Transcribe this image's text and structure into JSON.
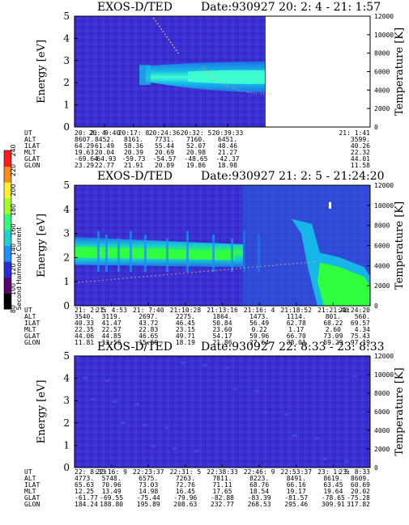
{
  "colors": {
    "background_base": "#3a2fd0",
    "band_outer": "#1f6fe6",
    "band_mid": "#16b6e8",
    "band_core": "#3fffcf",
    "band_hot": "#30ff40",
    "temp_trace": "#ffb070"
  },
  "left_colorbar": {
    "label": "Second Harmonic Current",
    "ticks": [
      "80",
      "100",
      "120",
      "140",
      "160",
      "180",
      "200",
      "220",
      "240"
    ],
    "colors": [
      "#000000",
      "#5a0070",
      "#2b2bd8",
      "#1e90ff",
      "#1fd0d0",
      "#2dff7a",
      "#a0ff2a",
      "#fff22a",
      "#ff8c1a",
      "#ff1a1a"
    ]
  },
  "panels": [
    {
      "title": "EXOS-D/TED",
      "date": "Date:930927  20: 2: 4 - 21: 1:57",
      "ylabel": "Energy [eV]",
      "y2label": "Temperature [K]",
      "yticks": [
        "0",
        "1",
        "2",
        "3",
        "4",
        "5"
      ],
      "y2ticks": [
        "0",
        "2000",
        "4000",
        "6000",
        "8000",
        "10000",
        "12000"
      ],
      "ephem": {
        "labels": [
          "UT",
          "ALT",
          "ILAT",
          "MLT",
          "GLAT",
          "GLON"
        ],
        "cols": [
          [
            "20: 2: 4",
            "8607.",
            "64.29",
            "19.63",
            "-69.64",
            "23.29"
          ],
          [
            "20: 9:40",
            "8452.",
            "61.49",
            "20.04",
            "-64.93",
            "22.77"
          ],
          [
            "20:17: 8",
            "8161.",
            "58.36",
            "20.39",
            "-59.73",
            "21.91"
          ],
          [
            "20:24:36",
            "7731.",
            "55.44",
            "20.69",
            "-54.57",
            "20.89"
          ],
          [
            "20:32: 5",
            "7160.",
            "52.07",
            "20.98",
            "-48.65",
            "19.86"
          ],
          [
            "20:39:33",
            "6451.",
            "48.46",
            "21.27",
            "-42.37",
            "18.98"
          ],
          [
            "21: 1:41",
            "3599.",
            "40.26",
            "22.32",
            "44.01",
            "11.58"
          ]
        ]
      }
    },
    {
      "title": "EXOS-D/TED",
      "date": "Date:930927  21: 2: 5 - 21:24:20",
      "ylabel": "Energy [eV]",
      "y2label": "Temperature [K]",
      "yticks": [
        "0",
        "1",
        "2",
        "3",
        "4",
        "5"
      ],
      "y2ticks": [
        "0",
        "2000",
        "4000",
        "6000",
        "8000",
        "10000",
        "12000"
      ],
      "ephem": {
        "labels": [
          "UT",
          "ALT",
          "ILAT",
          "MLT",
          "GLAT",
          "GLON"
        ],
        "cols": [
          [
            "21: 2: 5",
            "3540.",
            "40.33",
            "22.35",
            "44.06",
            "11.81"
          ],
          [
            "21: 4:53",
            "3119.",
            "41.47",
            "22.57",
            "44.85",
            "13.56"
          ],
          [
            "21: 7:40",
            "2697.",
            "43.72",
            "22.83",
            "46.65",
            "15.59"
          ],
          [
            "21:10:28",
            "2275.",
            "46.45",
            "23.15",
            "49.71",
            "18.19"
          ],
          [
            "21:13:16",
            "1864.",
            "50.84",
            "23.60",
            "54.17",
            "21.86"
          ],
          [
            "21:16: 4",
            "1473.",
            "56.49",
            "0.22",
            "59.96",
            "27.64"
          ],
          [
            "21:18:52",
            "1114.",
            "62.78",
            "1.17",
            "66.70",
            "38.01"
          ],
          [
            "21:21:40",
            "801.",
            "68.22",
            "2.60",
            "73.09",
            "59.29"
          ],
          [
            "21:24:20",
            "560.",
            "69.57",
            "4.34",
            "75.43",
            "97.19"
          ]
        ]
      }
    },
    {
      "title": "EXOS-D/TED",
      "date": "Date:930927  22: 8:33 - 23: 8:33",
      "ylabel": "Energy [eV]",
      "y2label": "Temperature [K]",
      "yticks": [
        "0",
        "1",
        "2",
        "3",
        "4",
        "5"
      ],
      "y2ticks": [
        "0",
        "2000",
        "4000",
        "6000",
        "8000",
        "10000",
        "12000"
      ],
      "ephem": {
        "labels": [
          "UT",
          "ALT",
          "ILAT",
          "MLT",
          "GLAT",
          "GLON"
        ],
        "cols": [
          [
            "22: 8:33",
            "4773.",
            "65.63",
            "12.25",
            "-61.77",
            "184.24"
          ],
          [
            "22:16: 9",
            "5748.",
            "70.96",
            "13.49",
            "-69.55",
            "188.80"
          ],
          [
            "22:23:37",
            "6575.",
            "73.03",
            "14.98",
            "-75.44",
            "195.89"
          ],
          [
            "22:31: 5",
            "7263.",
            "72.76",
            "16.45",
            "-79.96",
            "208.63"
          ],
          [
            "22:38:33",
            "7811.",
            "71.11",
            "17.65",
            "-82.88",
            "232.77"
          ],
          [
            "22:46: 9",
            "8223.",
            "68.76",
            "18.54",
            "-83.39",
            "268.53"
          ],
          [
            "22:53:37",
            "8491.",
            "66.16",
            "19.17",
            "-81.57",
            "295.46"
          ],
          [
            "23: 1: 5",
            "8619.",
            "63.45",
            "19.64",
            "-78.65",
            "309.91"
          ],
          [
            "23: 8:33",
            "8609.",
            "60.69",
            "20.02",
            "-75.28",
            "317.82"
          ]
        ]
      }
    }
  ],
  "chart_data": [
    {
      "type": "heatmap",
      "title": "EXOS-D/TED",
      "subtitle": "Date:930927  20: 2: 4 - 21: 1:57",
      "xlabel": "UT",
      "ylabel": "Energy [eV]",
      "y2label": "Temperature [K]",
      "ylim": [
        0,
        5
      ],
      "y2lim": [
        0,
        12000
      ],
      "x_tick_labels": [
        "20: 2: 4",
        "20: 9:40",
        "20:17: 8",
        "20:24:36",
        "20:32: 5",
        "20:39:33",
        "21: 1:41"
      ],
      "data_coverage_end": "21: 1:41",
      "band": {
        "note_energy_center_eV": 2.3,
        "start_UT": "20:22",
        "end_UT": "20:44"
      },
      "temperature_trace": {
        "values_K": [
          6500,
          5200,
          4300,
          3800,
          3600
        ]
      }
    },
    {
      "type": "heatmap",
      "title": "EXOS-D/TED",
      "subtitle": "Date:930927  21: 2: 5 - 21:24:20",
      "xlabel": "UT",
      "ylabel": "Energy [eV]",
      "y2label": "Temperature [K]",
      "ylim": [
        0,
        5
      ],
      "y2lim": [
        0,
        12000
      ],
      "x_tick_labels": [
        "21: 2: 5",
        "21: 4:53",
        "21: 7:40",
        "21:10:28",
        "21:13:16",
        "21:16: 4",
        "21:18:52",
        "21:21:40",
        "21:24:20"
      ],
      "band": {
        "note_energy_center_eV": 2.1
      },
      "temperature_trace": {
        "values_K": [
          2300,
          2600,
          3000,
          3600,
          4000,
          4300
        ]
      }
    },
    {
      "type": "heatmap",
      "title": "EXOS-D/TED",
      "subtitle": "Date:930927  22: 8:33 - 23: 8:33",
      "xlabel": "UT",
      "ylabel": "Energy [eV]",
      "y2label": "Temperature [K]",
      "ylim": [
        0,
        5
      ],
      "y2lim": [
        0,
        12000
      ],
      "x_tick_labels": [
        "22: 8:33",
        "22:16: 9",
        "22:23:37",
        "22:31: 5",
        "22:38:33",
        "22:46: 9",
        "22:53:37",
        "23: 1: 5",
        "23: 8:33"
      ]
    }
  ]
}
